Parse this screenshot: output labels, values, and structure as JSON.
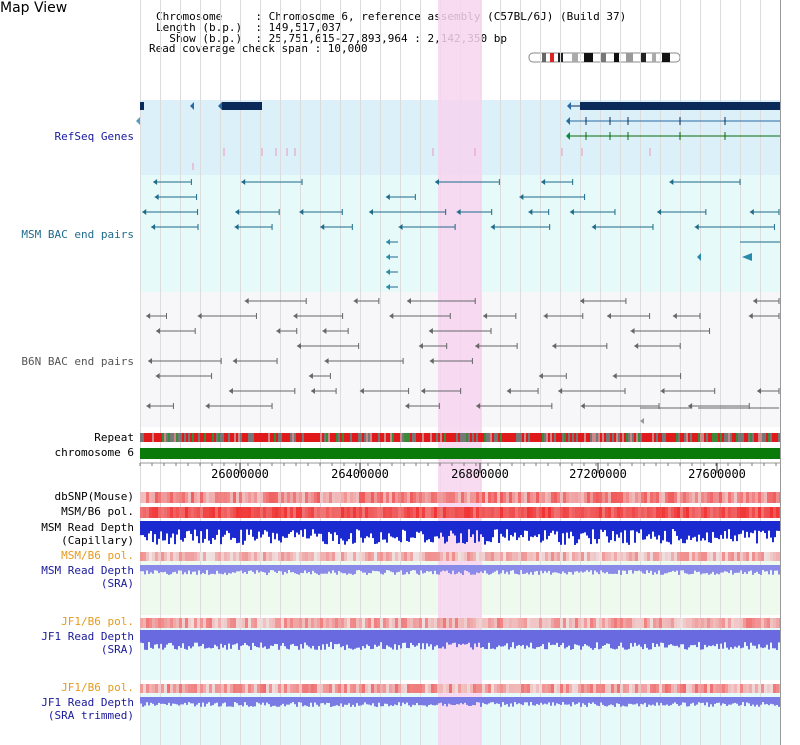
{
  "app": {
    "title": "Map View"
  },
  "header": {
    "lines": [
      "Chromosome     : Chromosome 6, reference assembly (C57BL/6J) (Build 37)",
      "Length (b.p.)  : 149,517,037",
      "  Show (b.p.)  : 25,751,615-27,893,964 : 2,142,350 bp",
      "Read coverage check span : 10,000"
    ]
  },
  "tracks": {
    "refseq": {
      "label": "RefSeq Genes",
      "color": "#1a1a9a"
    },
    "msm_bac": {
      "label": "MSM BAC end pairs",
      "color": "#1f6b8a"
    },
    "b6n_bac": {
      "label": "B6N BAC end pairs",
      "color": "#666666"
    },
    "repeat": {
      "label": "Repeat"
    },
    "chromosome": {
      "label": "chromosome 6"
    },
    "dbsnp": {
      "label": "dbSNP(Mouse)"
    },
    "msm_b6_pol": {
      "label": "MSM/B6 pol."
    },
    "msm_read_depth_cap": {
      "label": "MSM Read Depth",
      "sub": "(Capillary)"
    },
    "msm_b6_pol2": {
      "label": "MSM/B6 pol.",
      "color": "#e69a1a"
    },
    "msm_read_depth_sra": {
      "label": "MSM Read Depth",
      "sub": "(SRA)",
      "color": "#1a1a9a"
    },
    "jf1_b6_pol": {
      "label": "JF1/B6 pol.",
      "color": "#e69a1a"
    },
    "jf1_read_depth": {
      "label": "JF1 Read Depth",
      "sub": "(SRA)",
      "color": "#1a1a9a"
    },
    "jf1_b6_pol2": {
      "label": "JF1/B6 pol.",
      "color": "#e69a1a"
    },
    "jf1_read_depth_trim": {
      "label": "JF1 Read Depth",
      "sub": "(SRA trimmed)",
      "color": "#1a1a9a"
    }
  },
  "ruler": {
    "ticks": [
      "26000000",
      "26400000",
      "26800000",
      "27200000",
      "27600000"
    ]
  },
  "colors": {
    "highlight": "#f7d3ee",
    "refseq_bg": "#dcf0fa",
    "msm_bg": "#e6fafa",
    "b6n_bg": "#f8f8fa",
    "chrom_green": "#0a7a0a",
    "gene_dark": "#0a2a5a"
  }
}
